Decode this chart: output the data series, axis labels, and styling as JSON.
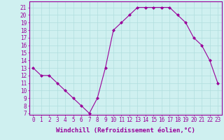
{
  "x": [
    0,
    1,
    2,
    3,
    4,
    5,
    6,
    7,
    8,
    9,
    10,
    11,
    12,
    13,
    14,
    15,
    16,
    17,
    18,
    19,
    20,
    21,
    22,
    23
  ],
  "y": [
    13,
    12,
    12,
    11,
    10,
    9,
    8,
    7,
    9,
    13,
    18,
    19,
    20,
    21,
    21,
    21,
    21,
    21,
    20,
    19,
    17,
    16,
    14,
    11
  ],
  "line_color": "#990099",
  "marker": "D",
  "marker_size": 2,
  "bg_color": "#cff0f0",
  "grid_color": "#b0dede",
  "xlabel": "Windchill (Refroidissement éolien,°C)",
  "xlabel_color": "#990099",
  "ylabel_ticks": [
    7,
    8,
    9,
    10,
    11,
    12,
    13,
    14,
    15,
    16,
    17,
    18,
    19,
    20,
    21
  ],
  "xlim": [
    -0.5,
    23.5
  ],
  "ylim": [
    6.8,
    21.8
  ],
  "tick_color": "#990099",
  "tick_fontsize": 5.5,
  "xlabel_fontsize": 6.5,
  "axis_color": "#990099",
  "linewidth": 0.8
}
